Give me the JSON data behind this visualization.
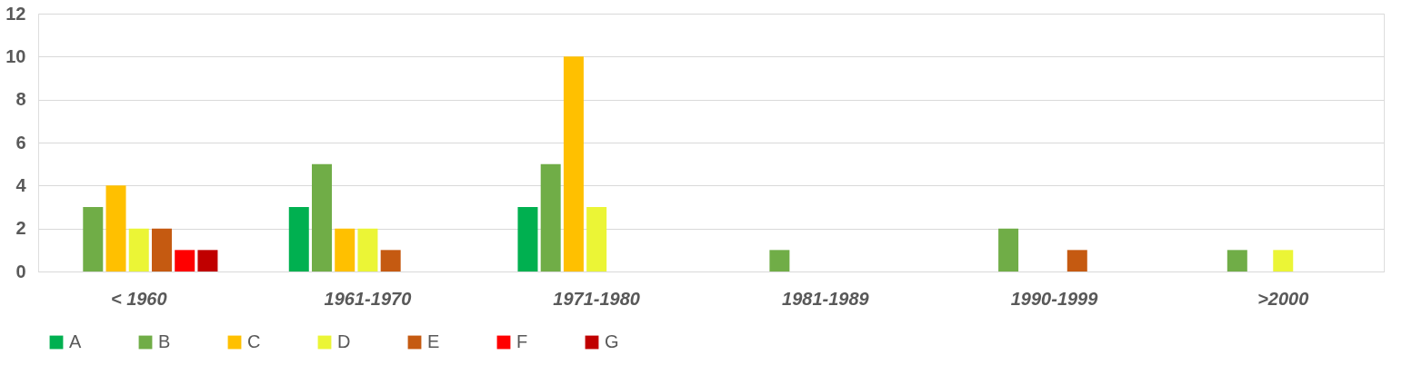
{
  "chart_data": {
    "type": "bar",
    "categories": [
      "< 1960",
      "1961-1970",
      "1971-1980",
      "1981-1989",
      "1990-1999",
      ">2000"
    ],
    "series": [
      {
        "name": "A",
        "color": "#00b050",
        "values": [
          null,
          3,
          3,
          null,
          null,
          null
        ]
      },
      {
        "name": "B",
        "color": "#70ad47",
        "values": [
          3,
          5,
          5,
          1,
          2,
          1
        ]
      },
      {
        "name": "C",
        "color": "#ffc000",
        "values": [
          4,
          2,
          10,
          null,
          null,
          null
        ]
      },
      {
        "name": "D",
        "color": "#ebf536",
        "values": [
          2,
          2,
          3,
          null,
          null,
          1
        ]
      },
      {
        "name": "E",
        "color": "#c55a11",
        "values": [
          2,
          1,
          null,
          null,
          1,
          null
        ]
      },
      {
        "name": "F",
        "color": "#ff0000",
        "values": [
          1,
          null,
          null,
          null,
          null,
          null
        ]
      },
      {
        "name": "G",
        "color": "#c00000",
        "values": [
          1,
          null,
          null,
          null,
          null,
          null
        ]
      }
    ],
    "ylim": [
      0,
      12
    ],
    "yticks": [
      0,
      2,
      4,
      6,
      8,
      10,
      12
    ],
    "grid": "y",
    "legend": "bottom"
  }
}
